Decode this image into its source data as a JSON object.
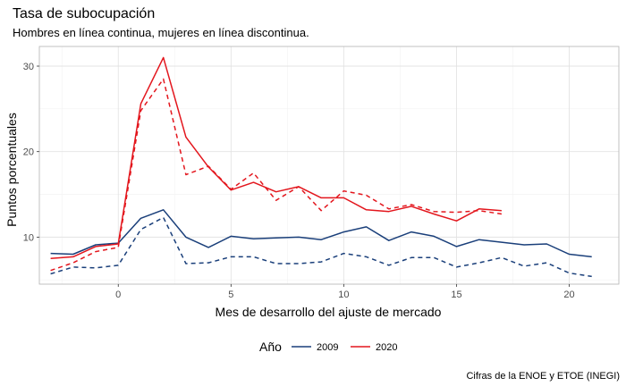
{
  "chart_data": {
    "type": "line",
    "title": "Tasa de subocupación",
    "subtitle": "Hombres en línea continua, mujeres en línea discontinua.",
    "xlabel": "Mes de desarrollo del ajuste de mercado",
    "ylabel": "Puntos porcentuales",
    "caption": "Cifras de la ENOE y ETOE (INEGI)",
    "xlim": [
      -3.5,
      22.2
    ],
    "ylim": [
      4.5,
      32.3
    ],
    "x_ticks": [
      0,
      5,
      10,
      15,
      20
    ],
    "y_ticks": [
      10,
      20,
      30
    ],
    "grid": true,
    "legend": {
      "title": "Año",
      "position": "bottom",
      "entries": [
        "2009",
        "2020"
      ]
    },
    "colors": {
      "2009": "#1a3f7a",
      "2020": "#e3161d"
    },
    "series": [
      {
        "name": "2009",
        "sexo": "hombres",
        "style": "solid",
        "x": [
          -3,
          -2,
          -1,
          0,
          1,
          2,
          3,
          4,
          5,
          6,
          7,
          8,
          9,
          10,
          11,
          12,
          13,
          14,
          15,
          16,
          17,
          18,
          19,
          20,
          21
        ],
        "y": [
          8.1,
          8.0,
          9.1,
          9.3,
          12.2,
          13.2,
          10.0,
          8.8,
          10.1,
          9.8,
          9.9,
          10.0,
          9.7,
          10.6,
          11.2,
          9.6,
          10.6,
          10.1,
          8.9,
          9.7,
          9.4,
          9.1,
          9.2,
          8.0,
          7.7
        ]
      },
      {
        "name": "2009",
        "sexo": "mujeres",
        "style": "dashed",
        "x": [
          -3,
          -2,
          -1,
          0,
          1,
          2,
          3,
          4,
          5,
          6,
          7,
          8,
          9,
          10,
          11,
          12,
          13,
          14,
          15,
          16,
          17,
          18,
          19,
          20,
          21
        ],
        "y": [
          5.7,
          6.5,
          6.4,
          6.7,
          10.9,
          12.3,
          6.9,
          7.0,
          7.7,
          7.7,
          6.9,
          6.9,
          7.1,
          8.1,
          7.7,
          6.7,
          7.6,
          7.6,
          6.5,
          7.0,
          7.6,
          6.6,
          7.0,
          5.8,
          5.4
        ]
      },
      {
        "name": "2020",
        "sexo": "hombres",
        "style": "solid",
        "x": [
          -3,
          -2,
          -1,
          0,
          1,
          2,
          3,
          4,
          5,
          6,
          7,
          8,
          9,
          10,
          11,
          12,
          13,
          14,
          15,
          16,
          17
        ],
        "y": [
          7.5,
          7.7,
          8.9,
          9.2,
          25.6,
          31.0,
          21.7,
          18.2,
          15.5,
          16.4,
          15.3,
          15.9,
          14.6,
          14.6,
          13.2,
          13.0,
          13.6,
          12.7,
          11.9,
          13.3,
          13.1
        ]
      },
      {
        "name": "2020",
        "sexo": "mujeres",
        "style": "dashed",
        "x": [
          -3,
          -2,
          -1,
          0,
          1,
          2,
          3,
          4,
          5,
          6,
          7,
          8,
          9,
          10,
          11,
          12,
          13,
          14,
          15,
          16,
          17
        ],
        "y": [
          6.1,
          7.0,
          8.3,
          8.8,
          24.8,
          28.5,
          17.3,
          18.3,
          15.6,
          17.5,
          14.3,
          15.9,
          13.1,
          15.4,
          14.9,
          13.3,
          13.8,
          13.0,
          12.9,
          13.1,
          12.7
        ]
      }
    ]
  }
}
